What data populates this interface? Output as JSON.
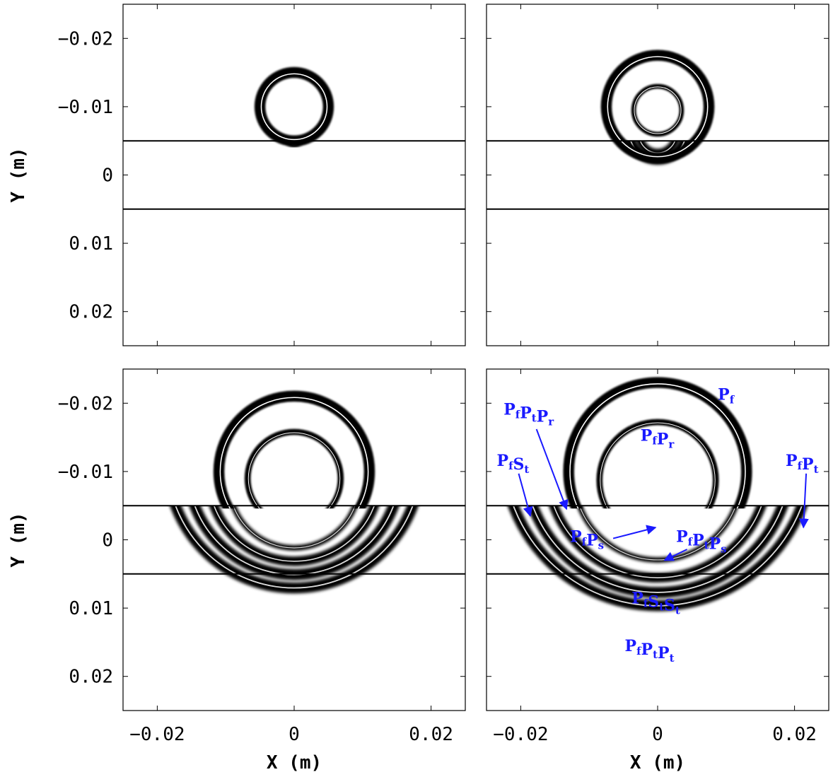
{
  "figure": {
    "x_axis": {
      "label": "X (m)",
      "range": [
        -0.025,
        0.025
      ],
      "ticks": [
        -0.02,
        0,
        0.02
      ],
      "tick_labels": [
        "−0.02",
        "0",
        "0.02"
      ]
    },
    "y_axis": {
      "label": "Y (m)",
      "range": [
        -0.025,
        0.025
      ],
      "inverted": true,
      "ticks": [
        -0.02,
        -0.01,
        0,
        0.01,
        0.02
      ],
      "tick_labels": [
        "−0.02",
        "−0.01",
        "0",
        "0.01",
        "0.02"
      ]
    },
    "layer_boundaries_y": [
      -0.005,
      0.005
    ],
    "panels": [
      {
        "id": "top-left",
        "show_x_labels": false,
        "show_y_labels": true,
        "source": [
          0,
          -0.01
        ],
        "fronts": [
          {
            "r": 0.005,
            "w": 0.0016,
            "kind": "full"
          }
        ],
        "transmitted": [
          {
            "r": 0.0009,
            "w": 0.0008
          }
        ]
      },
      {
        "id": "top-right",
        "show_x_labels": false,
        "show_y_labels": false,
        "source": [
          0,
          -0.01
        ],
        "fronts": [
          {
            "r": 0.0075,
            "w": 0.0016,
            "kind": "full"
          },
          {
            "r": 0.0035,
            "w": 0.0007,
            "kind": "reflected"
          }
        ],
        "transmitted": [
          {
            "r": 0.0042,
            "w": 0.0015
          },
          {
            "r": 0.0027,
            "w": 0.0012
          }
        ]
      },
      {
        "id": "bottom-left",
        "show_x_labels": true,
        "show_y_labels": true,
        "source": [
          0,
          -0.01
        ],
        "fronts": [
          {
            "r": 0.011,
            "w": 0.0016,
            "kind": "upper"
          },
          {
            "r": 0.0068,
            "w": 0.0009,
            "kind": "reflected"
          }
        ],
        "transmitted": [
          {
            "r": 0.0185,
            "w": 0.0016
          },
          {
            "r": 0.0155,
            "w": 0.0016
          },
          {
            "r": 0.0125,
            "w": 0.0014
          },
          {
            "r": 0.0095,
            "w": 0.0008
          }
        ]
      },
      {
        "id": "bottom-right",
        "show_x_labels": true,
        "show_y_labels": false,
        "source": [
          0,
          -0.01
        ],
        "fronts": [
          {
            "r": 0.013,
            "w": 0.0016,
            "kind": "upper"
          },
          {
            "r": 0.0085,
            "w": 0.0009,
            "kind": "reflected"
          }
        ],
        "transmitted": [
          {
            "r": 0.0225,
            "w": 0.0016
          },
          {
            "r": 0.0195,
            "w": 0.0016
          },
          {
            "r": 0.0162,
            "w": 0.0014
          },
          {
            "r": 0.0122,
            "w": 0.0008
          }
        ]
      }
    ],
    "annotations": [
      {
        "main": [
          "P",
          "f"
        ],
        "x": 0.0088,
        "y": -0.0205,
        "has_arrow": false
      },
      {
        "main": [
          "P",
          "f",
          "P",
          "r"
        ],
        "x": -0.0025,
        "y": -0.0145,
        "has_arrow": false
      },
      {
        "main": [
          "P",
          "f",
          "P",
          "t",
          "P",
          "r"
        ],
        "x": -0.0225,
        "y": -0.0183,
        "has_arrow": true,
        "arrow_from": [
          -0.0177,
          -0.0162
        ],
        "arrow_to": [
          -0.0133,
          -0.0045
        ]
      },
      {
        "main": [
          "P",
          "f",
          "S",
          "t"
        ],
        "x": -0.0235,
        "y": -0.0108,
        "has_arrow": true,
        "arrow_from": [
          -0.0203,
          -0.0097
        ],
        "arrow_to": [
          -0.0186,
          -0.0035
        ]
      },
      {
        "main": [
          "P",
          "f",
          "P",
          "t"
        ],
        "x": 0.0187,
        "y": -0.0108,
        "has_arrow": true,
        "arrow_from": [
          0.0217,
          -0.0097
        ],
        "arrow_to": [
          0.0213,
          -0.0018
        ]
      },
      {
        "main": [
          "P",
          "f",
          "P",
          "s"
        ],
        "x": -0.0128,
        "y": 0.0003,
        "has_arrow": true,
        "arrow_from": [
          -0.0065,
          -0.0002
        ],
        "arrow_to": [
          -0.0003,
          -0.0018
        ]
      },
      {
        "main": [
          "P",
          "f",
          "P",
          "t",
          "P",
          "s"
        ],
        "x": 0.0027,
        "y": 0.0003,
        "has_arrow": true,
        "arrow_from": [
          0.0043,
          0.0014
        ],
        "arrow_to": [
          0.001,
          0.003
        ]
      },
      {
        "main": [
          "P",
          "f",
          "S",
          "t",
          "S",
          "t"
        ],
        "x": -0.0038,
        "y": 0.0093,
        "has_arrow": false
      },
      {
        "main": [
          "P",
          "f",
          "P",
          "t",
          "P",
          "t"
        ],
        "x": -0.0048,
        "y": 0.0163,
        "has_arrow": false
      }
    ]
  }
}
